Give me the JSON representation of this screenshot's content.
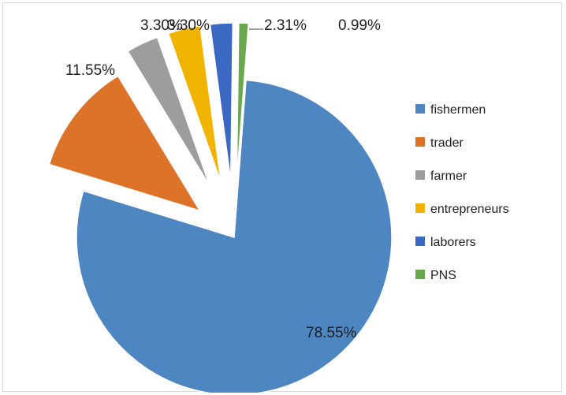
{
  "chart_data": {
    "type": "pie",
    "title": "",
    "exploded": true,
    "legend_position": "right",
    "slices": [
      {
        "label": "fishermen",
        "value": 78.55,
        "value_label": "78.55%",
        "color": "#4e86c2"
      },
      {
        "label": "trader",
        "value": 11.55,
        "value_label": "11.55%",
        "color": "#dd7328"
      },
      {
        "label": "farmer",
        "value": 3.3,
        "value_label": "3.30%",
        "color": "#9d9d9d"
      },
      {
        "label": "entrepreneurs",
        "value": 3.3,
        "value_label": "3.30%",
        "color": "#f0b400"
      },
      {
        "label": "laborers",
        "value": 2.31,
        "value_label": "2.31%",
        "color": "#3a68c2"
      },
      {
        "label": "PNS",
        "value": 0.99,
        "value_label": "0.99%",
        "color": "#6aa84f"
      }
    ]
  }
}
